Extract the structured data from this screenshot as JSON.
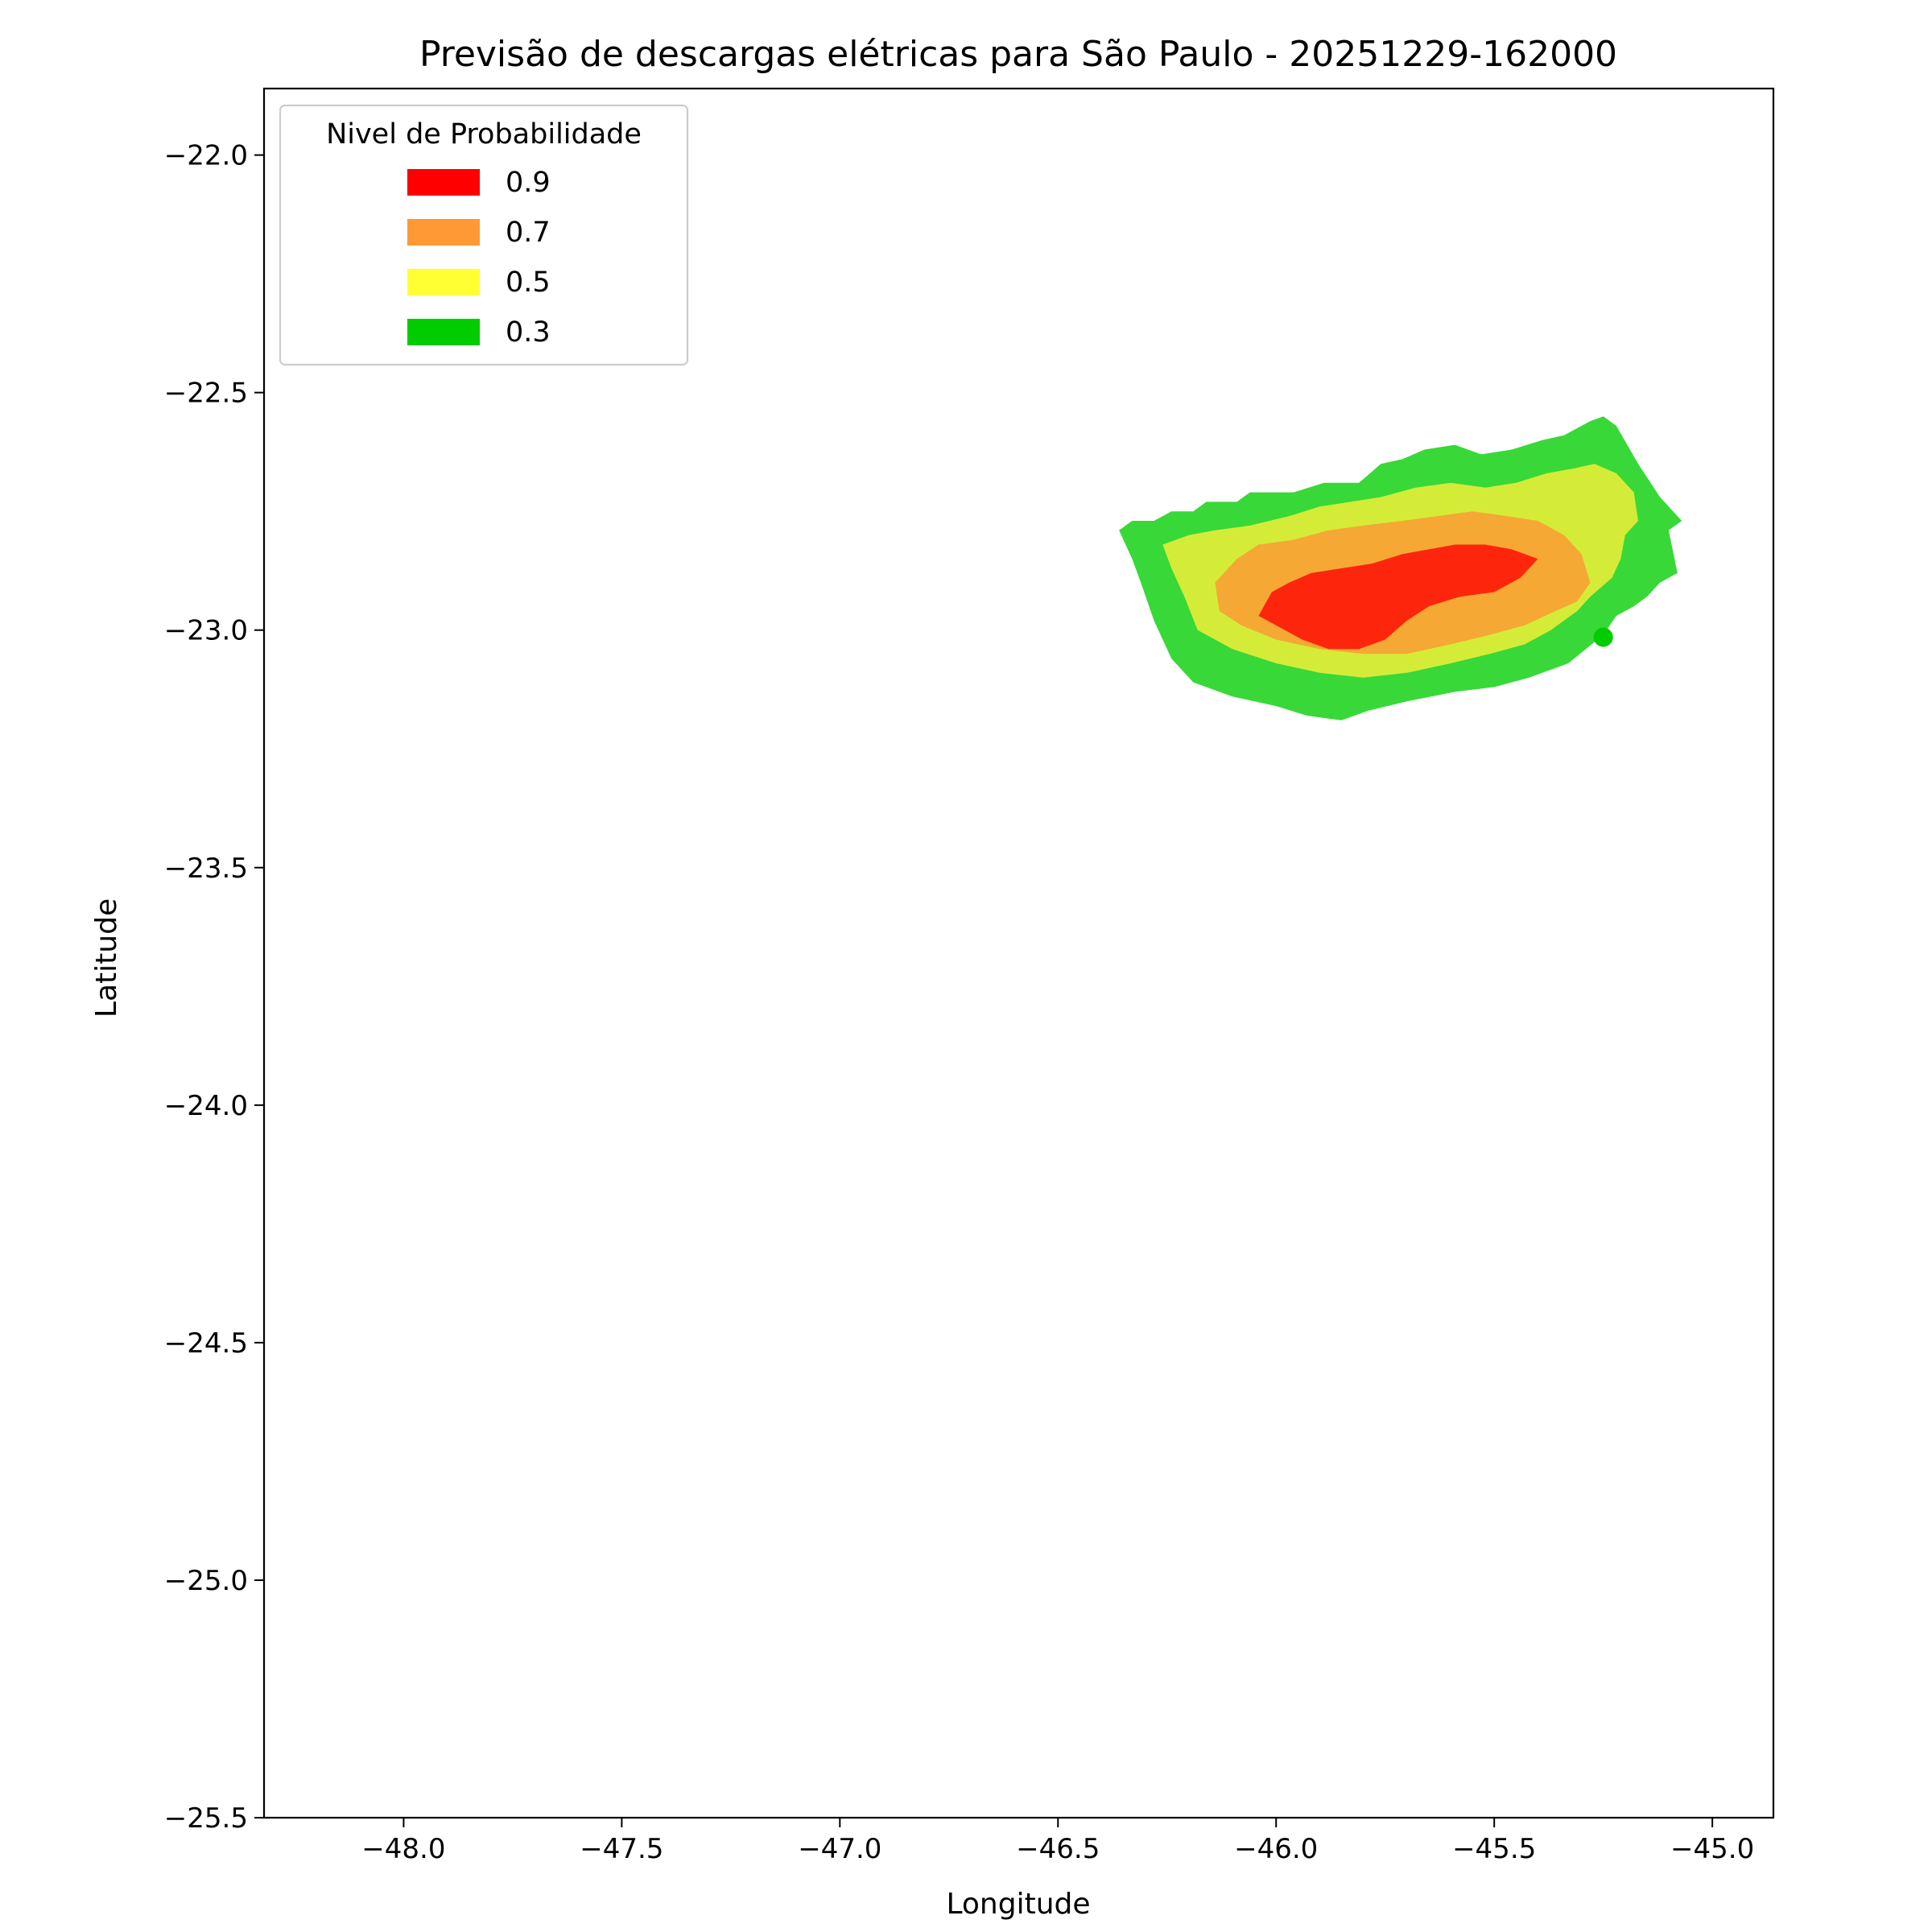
{
  "chart_data": {
    "type": "contour",
    "title": "Previsão de descargas elétricas para São Paulo - 20251229-162000",
    "xlabel": "Longitude",
    "ylabel": "Latitude",
    "xlim": [
      -48.32,
      -44.86
    ],
    "ylim": [
      -25.5,
      -21.86
    ],
    "xticks": [
      -48.0,
      -47.5,
      -47.0,
      -46.5,
      -46.0,
      -45.5,
      -45.0
    ],
    "xtick_labels": [
      "−48.0",
      "−47.5",
      "−47.0",
      "−46.5",
      "−46.0",
      "−45.5",
      "−45.0"
    ],
    "yticks": [
      -22.0,
      -22.5,
      -23.0,
      -23.5,
      -24.0,
      -24.5,
      -25.0,
      -25.5
    ],
    "ytick_labels": [
      "−22.0",
      "−22.5",
      "−23.0",
      "−23.5",
      "−24.0",
      "−24.5",
      "−25.0",
      "−25.5"
    ],
    "legend": {
      "title": "Nivel de Probabilidade",
      "position": "upper-left",
      "entries": [
        {
          "label": "0.9",
          "color": "#ff0000"
        },
        {
          "label": "0.7",
          "color": "#ff9933"
        },
        {
          "label": "0.5",
          "color": "#ffff33"
        },
        {
          "label": "0.3",
          "color": "#00cc00"
        }
      ]
    },
    "regions": [
      {
        "level": "0.3",
        "color": "#38d838",
        "points": [
          [
            -46.36,
            -22.79
          ],
          [
            -46.33,
            -22.77
          ],
          [
            -46.28,
            -22.77
          ],
          [
            -46.24,
            -22.75
          ],
          [
            -46.19,
            -22.75
          ],
          [
            -46.16,
            -22.73
          ],
          [
            -46.09,
            -22.73
          ],
          [
            -46.06,
            -22.71
          ],
          [
            -45.96,
            -22.71
          ],
          [
            -45.89,
            -22.69
          ],
          [
            -45.81,
            -22.69
          ],
          [
            -45.76,
            -22.65
          ],
          [
            -45.71,
            -22.64
          ],
          [
            -45.66,
            -22.62
          ],
          [
            -45.59,
            -22.61
          ],
          [
            -45.53,
            -22.63
          ],
          [
            -45.46,
            -22.62
          ],
          [
            -45.39,
            -22.6
          ],
          [
            -45.34,
            -22.59
          ],
          [
            -45.28,
            -22.56
          ],
          [
            -45.25,
            -22.55
          ],
          [
            -45.22,
            -22.57
          ],
          [
            -45.17,
            -22.65
          ],
          [
            -45.12,
            -22.72
          ],
          [
            -45.07,
            -22.77
          ],
          [
            -45.1,
            -22.79
          ],
          [
            -45.08,
            -22.88
          ],
          [
            -45.12,
            -22.9
          ],
          [
            -45.15,
            -22.93
          ],
          [
            -45.18,
            -22.95
          ],
          [
            -45.22,
            -22.97
          ],
          [
            -45.25,
            -23.01
          ],
          [
            -45.29,
            -23.04
          ],
          [
            -45.33,
            -23.07
          ],
          [
            -45.42,
            -23.1
          ],
          [
            -45.5,
            -23.12
          ],
          [
            -45.59,
            -23.13
          ],
          [
            -45.7,
            -23.15
          ],
          [
            -45.79,
            -23.17
          ],
          [
            -45.85,
            -23.19
          ],
          [
            -45.93,
            -23.18
          ],
          [
            -46.0,
            -23.16
          ],
          [
            -46.1,
            -23.14
          ],
          [
            -46.19,
            -23.11
          ],
          [
            -46.24,
            -23.06
          ],
          [
            -46.28,
            -22.98
          ],
          [
            -46.31,
            -22.9
          ],
          [
            -46.33,
            -22.85
          ]
        ]
      },
      {
        "level": "0.5",
        "color": "#d4ec38",
        "points": [
          [
            -46.26,
            -22.82
          ],
          [
            -46.2,
            -22.8
          ],
          [
            -46.14,
            -22.79
          ],
          [
            -46.06,
            -22.78
          ],
          [
            -45.97,
            -22.76
          ],
          [
            -45.9,
            -22.74
          ],
          [
            -45.83,
            -22.73
          ],
          [
            -45.76,
            -22.72
          ],
          [
            -45.68,
            -22.7
          ],
          [
            -45.6,
            -22.69
          ],
          [
            -45.52,
            -22.7
          ],
          [
            -45.45,
            -22.69
          ],
          [
            -45.38,
            -22.67
          ],
          [
            -45.32,
            -22.66
          ],
          [
            -45.27,
            -22.65
          ],
          [
            -45.22,
            -22.67
          ],
          [
            -45.18,
            -22.71
          ],
          [
            -45.17,
            -22.77
          ],
          [
            -45.2,
            -22.8
          ],
          [
            -45.21,
            -22.85
          ],
          [
            -45.23,
            -22.89
          ],
          [
            -45.28,
            -22.93
          ],
          [
            -45.31,
            -22.96
          ],
          [
            -45.37,
            -23.0
          ],
          [
            -45.43,
            -23.03
          ],
          [
            -45.51,
            -23.05
          ],
          [
            -45.6,
            -23.07
          ],
          [
            -45.7,
            -23.09
          ],
          [
            -45.8,
            -23.1
          ],
          [
            -45.9,
            -23.09
          ],
          [
            -46.0,
            -23.07
          ],
          [
            -46.1,
            -23.04
          ],
          [
            -46.18,
            -23.0
          ],
          [
            -46.21,
            -22.93
          ],
          [
            -46.24,
            -22.87
          ]
        ]
      },
      {
        "level": "0.7",
        "color": "#f5a833",
        "points": [
          [
            -46.14,
            -22.9
          ],
          [
            -46.09,
            -22.85
          ],
          [
            -46.04,
            -22.82
          ],
          [
            -45.96,
            -22.81
          ],
          [
            -45.88,
            -22.79
          ],
          [
            -45.8,
            -22.78
          ],
          [
            -45.71,
            -22.77
          ],
          [
            -45.63,
            -22.76
          ],
          [
            -45.55,
            -22.75
          ],
          [
            -45.47,
            -22.76
          ],
          [
            -45.4,
            -22.77
          ],
          [
            -45.34,
            -22.8
          ],
          [
            -45.3,
            -22.84
          ],
          [
            -45.28,
            -22.9
          ],
          [
            -45.31,
            -22.94
          ],
          [
            -45.36,
            -22.96
          ],
          [
            -45.43,
            -22.99
          ],
          [
            -45.51,
            -23.01
          ],
          [
            -45.6,
            -23.03
          ],
          [
            -45.7,
            -23.05
          ],
          [
            -45.8,
            -23.05
          ],
          [
            -45.9,
            -23.04
          ],
          [
            -46.0,
            -23.02
          ],
          [
            -46.08,
            -22.99
          ],
          [
            -46.13,
            -22.96
          ]
        ]
      },
      {
        "level": "0.9",
        "color": "#fd260d",
        "points": [
          [
            -46.04,
            -22.97
          ],
          [
            -46.01,
            -22.92
          ],
          [
            -45.97,
            -22.9
          ],
          [
            -45.92,
            -22.88
          ],
          [
            -45.85,
            -22.87
          ],
          [
            -45.78,
            -22.86
          ],
          [
            -45.71,
            -22.84
          ],
          [
            -45.65,
            -22.83
          ],
          [
            -45.59,
            -22.82
          ],
          [
            -45.52,
            -22.82
          ],
          [
            -45.46,
            -22.83
          ],
          [
            -45.4,
            -22.85
          ],
          [
            -45.44,
            -22.89
          ],
          [
            -45.5,
            -22.92
          ],
          [
            -45.58,
            -22.93
          ],
          [
            -45.65,
            -22.95
          ],
          [
            -45.7,
            -22.98
          ],
          [
            -45.75,
            -23.02
          ],
          [
            -45.81,
            -23.04
          ],
          [
            -45.88,
            -23.04
          ],
          [
            -45.94,
            -23.02
          ]
        ]
      }
    ],
    "markers": [
      {
        "lon": -45.25,
        "lat": -23.015,
        "color": "#00cc00"
      }
    ]
  }
}
